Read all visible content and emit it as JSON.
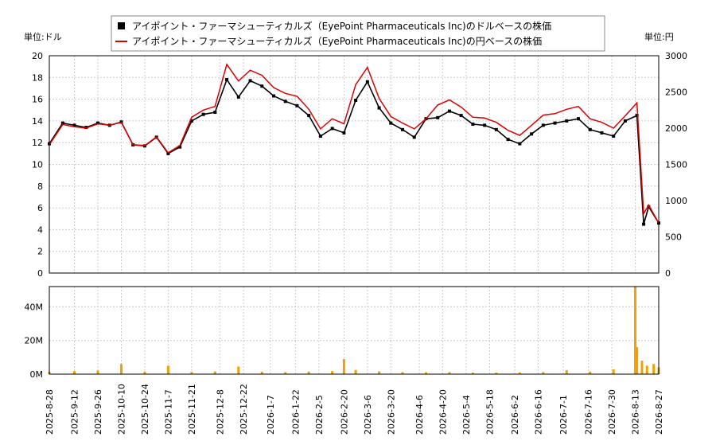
{
  "legend": [
    {
      "label": "アイポイント・ファーマシューティカルズ（EyePoint Pharmaceuticals Inc)のドルベースの株価",
      "color": "#000000",
      "marker": "square"
    },
    {
      "label": "アイポイント・ファーマシューティカルズ（EyePoint Pharmaceuticals Inc)の円ベースの株価",
      "color": "#dd0000",
      "marker": "line"
    }
  ],
  "left_unit_label": "単位:ドル",
  "right_unit_label": "単位:円",
  "chart_data": {
    "type": "line",
    "price_panel": {
      "y_left_range": [
        0,
        20
      ],
      "y_left_ticks": [
        "0",
        "2",
        "4",
        "6",
        "8",
        "10",
        "12",
        "14",
        "16",
        "18",
        "20"
      ],
      "y_right_range": [
        0,
        3000
      ],
      "y_right_ticks": [
        "0",
        "500",
        "1000",
        "1500",
        "2000",
        "2500",
        "3000"
      ],
      "grid": true,
      "series": [
        {
          "name": "アイポイント・ファーマシューティカルズ（EyePoint Pharmaceuticals Inc)のドルベースの株価",
          "axis": "left",
          "color": "#000000",
          "x": [
            "2025-08-28",
            "2025-09-05",
            "2025-09-12",
            "2025-09-19",
            "2025-09-26",
            "2025-10-03",
            "2025-10-10",
            "2025-10-17",
            "2025-10-24",
            "2025-10-31",
            "2025-11-07",
            "2025-11-14",
            "2025-11-21",
            "2025-11-28",
            "2025-12-05",
            "2025-12-12",
            "2025-12-19",
            "2025-12-26",
            "2026-01-02",
            "2026-01-09",
            "2026-01-16",
            "2026-01-23",
            "2026-01-30",
            "2026-02-06",
            "2026-02-13",
            "2026-02-20",
            "2026-02-27",
            "2026-03-06",
            "2026-03-13",
            "2026-03-20",
            "2026-03-27",
            "2026-04-03",
            "2026-04-10",
            "2026-04-17",
            "2026-04-24",
            "2026-05-01",
            "2026-05-08",
            "2026-05-15",
            "2026-05-22",
            "2026-05-29",
            "2026-06-05",
            "2026-06-12",
            "2026-06-19",
            "2026-06-26",
            "2026-07-03",
            "2026-07-10",
            "2026-07-17",
            "2026-07-24",
            "2026-07-31",
            "2026-08-07",
            "2026-08-14",
            "2026-08-18",
            "2026-08-21",
            "2026-08-27"
          ],
          "values": [
            11.9,
            13.8,
            13.6,
            13.4,
            13.8,
            13.6,
            13.9,
            11.8,
            11.7,
            12.5,
            11.0,
            11.6,
            14.0,
            14.6,
            14.8,
            17.8,
            16.2,
            17.7,
            17.2,
            16.3,
            15.8,
            15.4,
            14.5,
            12.6,
            13.3,
            12.9,
            15.9,
            17.6,
            15.2,
            13.8,
            13.2,
            12.5,
            14.2,
            14.3,
            14.9,
            14.5,
            13.7,
            13.6,
            13.2,
            12.3,
            11.9,
            12.8,
            13.6,
            13.8,
            14.0,
            14.2,
            13.2,
            12.9,
            12.6,
            14.0,
            14.5,
            4.5,
            6.1,
            4.6
          ]
        },
        {
          "name": "アイポイント・ファーマシューティカルズ（EyePoint Pharmaceuticals Inc)の円ベースの株価",
          "axis": "right",
          "color": "#dd0000",
          "x": [
            "2025-08-28",
            "2025-09-05",
            "2025-09-12",
            "2025-09-19",
            "2025-09-26",
            "2025-10-03",
            "2025-10-10",
            "2025-10-17",
            "2025-10-24",
            "2025-10-31",
            "2025-11-07",
            "2025-11-14",
            "2025-11-21",
            "2025-11-28",
            "2025-12-05",
            "2025-12-12",
            "2025-12-19",
            "2025-12-26",
            "2026-01-02",
            "2026-01-09",
            "2026-01-16",
            "2026-01-23",
            "2026-01-30",
            "2026-02-06",
            "2026-02-13",
            "2026-02-20",
            "2026-02-27",
            "2026-03-06",
            "2026-03-13",
            "2026-03-20",
            "2026-03-27",
            "2026-04-03",
            "2026-04-10",
            "2026-04-17",
            "2026-04-24",
            "2026-05-01",
            "2026-05-08",
            "2026-05-15",
            "2026-05-22",
            "2026-05-29",
            "2026-06-05",
            "2026-06-12",
            "2026-06-19",
            "2026-06-26",
            "2026-07-03",
            "2026-07-10",
            "2026-07-17",
            "2026-07-24",
            "2026-07-31",
            "2026-08-07",
            "2026-08-14",
            "2026-08-18",
            "2026-08-21",
            "2026-08-27"
          ],
          "values": [
            1770,
            2050,
            2020,
            2000,
            2060,
            2040,
            2080,
            1770,
            1760,
            1880,
            1660,
            1760,
            2150,
            2250,
            2300,
            2880,
            2650,
            2800,
            2730,
            2560,
            2480,
            2440,
            2260,
            1990,
            2130,
            2060,
            2600,
            2840,
            2410,
            2160,
            2070,
            1990,
            2130,
            2320,
            2390,
            2290,
            2150,
            2140,
            2080,
            1970,
            1900,
            2040,
            2180,
            2200,
            2260,
            2300,
            2130,
            2080,
            2000,
            2170,
            2350,
            820,
            940,
            690
          ]
        }
      ]
    },
    "volume_panel": {
      "type": "bar",
      "color": "#f0a000",
      "y_range": [
        0,
        52000000
      ],
      "y_ticks": [
        "0M",
        "20M",
        "40M"
      ],
      "x": [
        "2025-08-28",
        "2025-09-12",
        "2025-09-26",
        "2025-10-10",
        "2025-10-24",
        "2025-11-07",
        "2025-11-21",
        "2025-12-05",
        "2025-12-19",
        "2026-01-02",
        "2026-01-16",
        "2026-01-30",
        "2026-02-13",
        "2026-02-20",
        "2026-02-27",
        "2026-03-13",
        "2026-03-27",
        "2026-04-10",
        "2026-04-24",
        "2026-05-08",
        "2026-05-22",
        "2026-06-05",
        "2026-06-19",
        "2026-07-03",
        "2026-07-17",
        "2026-07-31",
        "2026-08-13",
        "2026-08-14",
        "2026-08-17",
        "2026-08-20",
        "2026-08-24",
        "2026-08-27"
      ],
      "values": [
        1500000,
        1800000,
        2200000,
        6000000,
        1500000,
        5000000,
        1300000,
        1600000,
        4500000,
        1400000,
        1200000,
        1500000,
        1800000,
        9000000,
        2500000,
        1600000,
        1200000,
        1100000,
        1200000,
        900000,
        900000,
        1000000,
        1200000,
        2400000,
        1500000,
        2800000,
        52000000,
        16000000,
        8000000,
        5000000,
        6000000,
        4000000
      ]
    },
    "x_tick_labels": [
      "2025-8-28",
      "2025-9-12",
      "2025-9-26",
      "2025-10-10",
      "2025-10-24",
      "2025-11-7",
      "2025-11-21",
      "2025-12-8",
      "2025-12-22",
      "2026-1-7",
      "2026-1-22",
      "2026-2-5",
      "2026-2-20",
      "2026-3-6",
      "2026-3-20",
      "2026-4-6",
      "2026-4-20",
      "2026-5-4",
      "2026-5-18",
      "2026-6-2",
      "2026-6-16",
      "2026-7-1",
      "2026-7-16",
      "2026-7-30",
      "2026-8-13",
      "2026-8-27"
    ]
  }
}
